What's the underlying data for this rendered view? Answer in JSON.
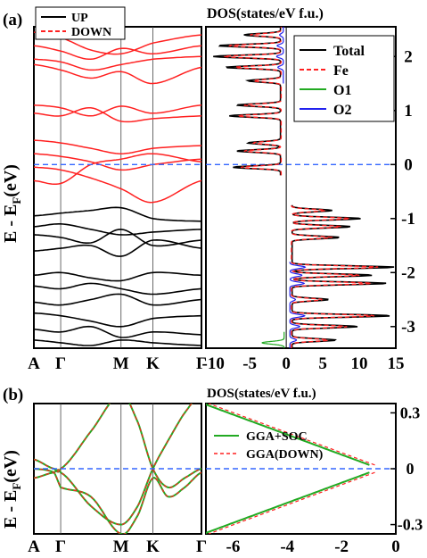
{
  "panels": [
    {
      "label": "(a)"
    },
    {
      "label": "(b)"
    }
  ],
  "ylabel_main": "E - E",
  "ylabel_sub": "F",
  "ylabel_unit": "(eV)",
  "dos_title_a": "DOS(states/eV f.u.)",
  "dos_title_b": "DOS(states/eV f.u.)",
  "colors": {
    "up": "#000000",
    "down": "#ff2020",
    "o1": "#22aa22",
    "o2": "#2222ee",
    "fermi": "#3366ff",
    "soc": "#22aa22"
  },
  "chart_data": [
    {
      "type": "line",
      "name": "band-structure-a",
      "kpoints": [
        "A",
        "Γ",
        "M",
        "K",
        "Γ"
      ],
      "kpos": [
        0,
        0.16,
        0.52,
        0.71,
        1.0
      ],
      "ylim": [
        -3.4,
        2.55
      ],
      "legend": [
        "UP",
        "DOWN"
      ],
      "legend_position": "top-left",
      "bands_down": [
        [
          2.45,
          2.35,
          2.12,
          2.05,
          2.25,
          2.4
        ],
        [
          2.2,
          2.1,
          1.95,
          2.15,
          2.05,
          2.2
        ],
        [
          1.95,
          1.9,
          1.75,
          1.85,
          1.95,
          2.0
        ],
        [
          1.85,
          1.75,
          1.6,
          1.72,
          1.5,
          1.8
        ],
        [
          1.1,
          1.05,
          0.9,
          1.08,
          0.95,
          1.1
        ],
        [
          0.95,
          0.9,
          1.05,
          0.8,
          0.85,
          0.9
        ],
        [
          0.45,
          0.4,
          0.3,
          0.2,
          0.3,
          0.35
        ],
        [
          0.2,
          0.15,
          0.05,
          -0.1,
          0.0,
          0.1
        ],
        [
          -0.05,
          -0.1,
          -0.25,
          -0.45,
          -0.7,
          -0.3
        ],
        [
          -0.3,
          -0.35,
          0.0,
          0.1,
          0.2,
          0.05
        ]
      ],
      "bands_up": [
        [
          -0.95,
          -0.9,
          -0.85,
          -0.8,
          -1.0,
          -1.05
        ],
        [
          -1.15,
          -1.1,
          -1.2,
          -1.3,
          -1.25,
          -1.2
        ],
        [
          -1.3,
          -1.35,
          -1.45,
          -1.2,
          -1.5,
          -1.4
        ],
        [
          -1.6,
          -1.55,
          -1.5,
          -1.7,
          -1.4,
          -1.55
        ],
        [
          -2.05,
          -2.0,
          -2.1,
          -2.15,
          -2.0,
          -2.05
        ],
        [
          -2.25,
          -2.3,
          -2.2,
          -2.3,
          -2.4,
          -2.3
        ],
        [
          -2.55,
          -2.6,
          -2.5,
          -2.4,
          -2.6,
          -2.5
        ],
        [
          -2.75,
          -2.8,
          -2.9,
          -3.0,
          -2.85,
          -2.8
        ],
        [
          -3.05,
          -3.1,
          -3.0,
          -3.2,
          -3.1,
          -3.15
        ],
        [
          -3.25,
          -3.3,
          -3.35,
          -3.25,
          -3.3,
          -3.35
        ]
      ]
    },
    {
      "type": "line",
      "name": "dos-a",
      "xlim": [
        -11,
        15
      ],
      "ylim": [
        -3.4,
        2.55
      ],
      "xticks": [
        -10,
        -5,
        0,
        5,
        10,
        15
      ],
      "yticks": [
        2,
        1,
        0,
        -1,
        -2,
        -3
      ],
      "legend": [
        "Total",
        "Fe",
        "O1",
        "O2"
      ],
      "legend_position": "top-right",
      "peaks_neg": [
        [
          2.4,
          -5
        ],
        [
          2.2,
          -8.5
        ],
        [
          2.0,
          -9.2
        ],
        [
          1.8,
          -7.5
        ],
        [
          1.55,
          -4.5
        ],
        [
          1.1,
          -6
        ],
        [
          0.9,
          -7
        ],
        [
          0.4,
          -4.5
        ],
        [
          0.25,
          -6
        ],
        [
          -0.05,
          -6.5
        ]
      ],
      "peaks_pos": [
        [
          -0.85,
          5.5
        ],
        [
          -1.0,
          9.5
        ],
        [
          -1.15,
          8
        ],
        [
          -1.35,
          6.5
        ],
        [
          -1.9,
          14
        ],
        [
          -2.05,
          11
        ],
        [
          -2.2,
          13
        ],
        [
          -2.5,
          5
        ],
        [
          -2.8,
          13.5
        ],
        [
          -3.0,
          9
        ],
        [
          -3.25,
          6
        ]
      ]
    },
    {
      "type": "line",
      "name": "band-structure-b",
      "kpoints": [
        "A",
        "Γ",
        "M",
        "K",
        "Γ"
      ],
      "ylim": [
        -0.35,
        0.35
      ]
    },
    {
      "type": "line",
      "name": "dos-b",
      "xlim": [
        -7,
        0
      ],
      "ylim": [
        -0.35,
        0.35
      ],
      "xticks": [
        -6,
        -4,
        -2,
        0
      ],
      "yticks": [
        0.3,
        0,
        -0.3
      ],
      "yticklabels": [
        "0.3",
        "0",
        "-0.3"
      ],
      "legend": [
        "GGA+SOC",
        "GGA(DOWN)"
      ],
      "legend_position": "right"
    }
  ]
}
